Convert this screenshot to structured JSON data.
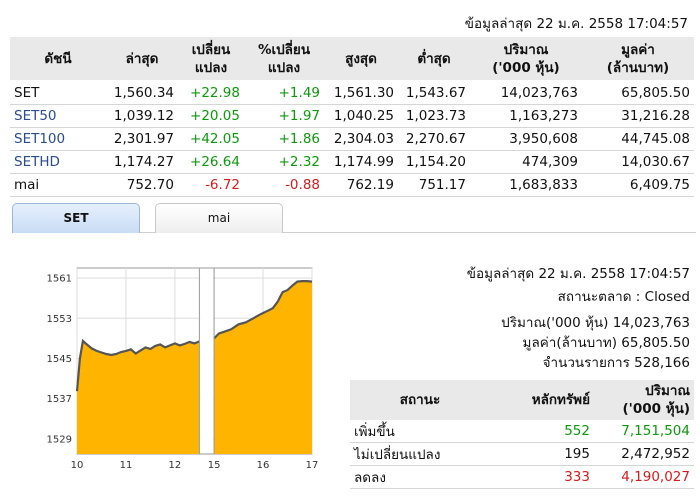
{
  "header": {
    "timestamp": "ข้อมูลล่าสุด 22 ม.ค. 2558 17:04:57"
  },
  "index_table": {
    "columns": [
      "ดัชนี",
      "ล่าสุด",
      "เปลี่ยน\nแปลง",
      "%เปลี่ยน\nแปลง",
      "สูงสุด",
      "ต่ำสุด",
      "ปริมาณ\n('000 หุ้น)",
      "มูลค่า\n(ล้านบาท)"
    ],
    "rows": [
      {
        "name": "SET",
        "last": "1,560.34",
        "change": "+22.98",
        "pct": "+1.49",
        "high": "1,561.30",
        "low": "1,543.67",
        "volume": "14,023,763",
        "value": "65,805.50",
        "dir": "pos",
        "link": false
      },
      {
        "name": "SET50",
        "last": "1,039.12",
        "change": "+20.05",
        "pct": "+1.97",
        "high": "1,040.25",
        "low": "1,023.73",
        "volume": "1,163,273",
        "value": "31,216.28",
        "dir": "pos",
        "link": true
      },
      {
        "name": "SET100",
        "last": "2,301.97",
        "change": "+42.05",
        "pct": "+1.86",
        "high": "2,304.03",
        "low": "2,270.67",
        "volume": "3,950,608",
        "value": "44,745.08",
        "dir": "pos",
        "link": true
      },
      {
        "name": "SETHD",
        "last": "1,174.27",
        "change": "+26.64",
        "pct": "+2.32",
        "high": "1,174.99",
        "low": "1,154.20",
        "volume": "474,309",
        "value": "14,030.67",
        "dir": "pos",
        "link": true
      },
      {
        "name": "mai",
        "last": "752.70",
        "change": "-6.72",
        "pct": "-0.88",
        "high": "762.19",
        "low": "751.17",
        "volume": "1,683,833",
        "value": "6,409.75",
        "dir": "neg",
        "link": false
      }
    ]
  },
  "tabs": [
    {
      "label": "SET",
      "active": true
    },
    {
      "label": "mai",
      "active": false
    }
  ],
  "chart_data": {
    "type": "area",
    "title": "",
    "xlabel": "",
    "ylabel": "",
    "x_ticks": [
      "10",
      "11",
      "12",
      "15",
      "16",
      "17"
    ],
    "y_ticks": [
      1529,
      1537,
      1545,
      1553,
      1561
    ],
    "ylim": [
      1526,
      1563
    ],
    "grid": true,
    "fill_color": "#ffb400",
    "line_color": "#555555",
    "series": [
      {
        "x": [
          10.0,
          10.06,
          10.12,
          10.2,
          10.3,
          10.4,
          10.5,
          10.6,
          10.7,
          10.8,
          10.9,
          11.0,
          11.1,
          11.2,
          11.3,
          11.4,
          11.5,
          11.6,
          11.7,
          11.8,
          11.9,
          12.0,
          12.1,
          12.2,
          12.3,
          12.4,
          12.5
        ],
        "y": [
          1538.5,
          1545.0,
          1548.5,
          1547.8,
          1547.0,
          1546.5,
          1546.2,
          1545.9,
          1545.7,
          1545.9,
          1546.3,
          1546.5,
          1546.8,
          1546.0,
          1546.6,
          1547.2,
          1546.9,
          1547.5,
          1547.8,
          1547.2,
          1547.6,
          1548.0,
          1547.6,
          1547.9,
          1548.3,
          1548.0,
          1548.4
        ]
      },
      {
        "x": [
          15.0,
          15.1,
          15.2,
          15.35,
          15.5,
          15.65,
          15.8,
          15.95,
          16.1,
          16.2,
          16.3,
          16.4,
          16.5,
          16.6,
          16.7,
          16.8,
          16.9,
          17.0
        ],
        "y": [
          1549.0,
          1550.0,
          1550.3,
          1550.8,
          1551.8,
          1552.2,
          1553.0,
          1553.8,
          1554.5,
          1555.0,
          1556.3,
          1558.2,
          1558.6,
          1559.5,
          1560.3,
          1560.4,
          1560.4,
          1560.3
        ]
      }
    ]
  },
  "market_info": {
    "timestamp": "ข้อมูลล่าสุด 22 ม.ค. 2558 17:04:57",
    "status": "สถานะตลาด : Closed",
    "volume": "ปริมาณ('000 หุ้น) 14,023,763",
    "value": "มูลค่า(ล้านบาท) 65,805.50",
    "transactions": "จำนวนรายการ 528,166"
  },
  "stat_table": {
    "columns": [
      "สถานะ",
      "หลักทรัพย์",
      "ปริมาณ\n('000 หุ้น)"
    ],
    "rows": [
      {
        "status": "เพิ่มขึ้น",
        "securities": "552",
        "volume": "7,151,504",
        "dir": "pos"
      },
      {
        "status": "ไม่เปลี่ยนแปลง",
        "securities": "195",
        "volume": "2,472,952",
        "dir": "plain"
      },
      {
        "status": "ลดลง",
        "securities": "333",
        "volume": "4,190,027",
        "dir": "neg"
      }
    ]
  }
}
